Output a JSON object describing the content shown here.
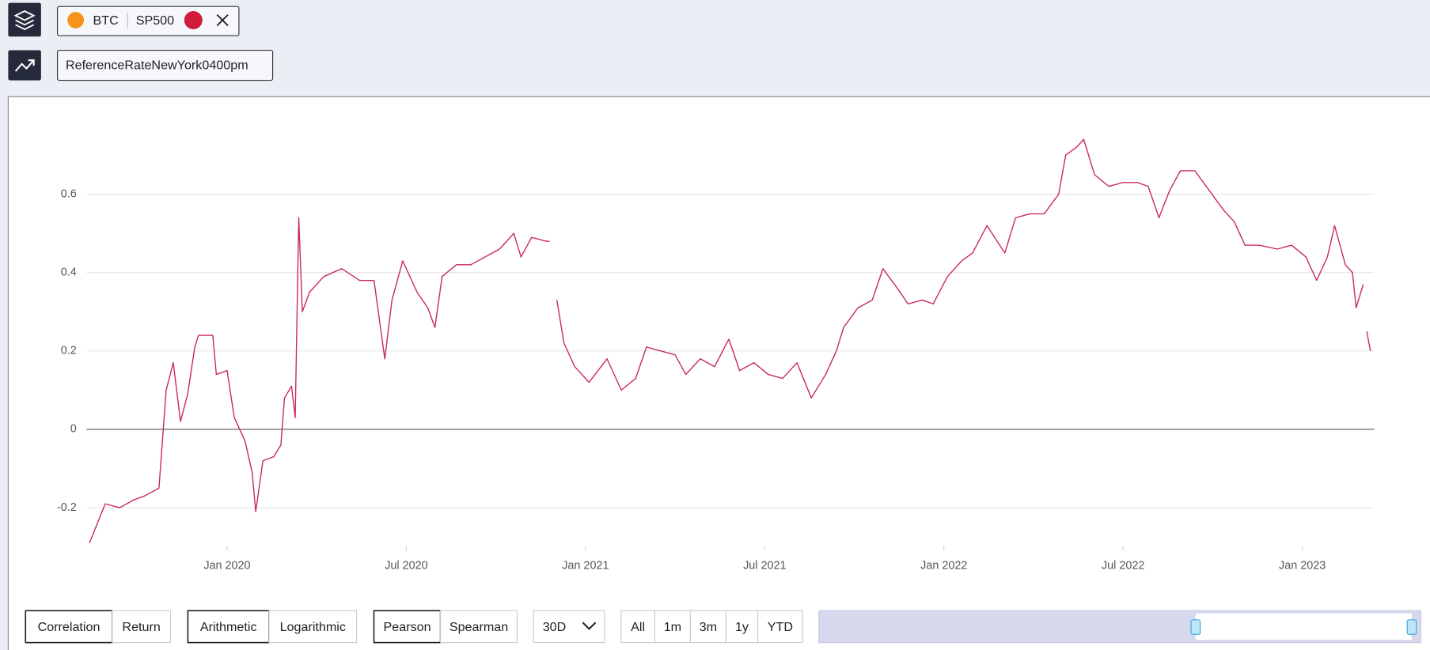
{
  "header": {
    "assets": [
      "BTC",
      "SP500"
    ],
    "metric": "ReferenceRateNewYork0400pm"
  },
  "chart_data": {
    "type": "line",
    "color": "#c8285a",
    "x": [
      2019.616,
      2019.66,
      2019.7,
      2019.74,
      2019.77,
      2019.81,
      2019.83,
      2019.85,
      2019.87,
      2019.89,
      2019.91,
      2019.92,
      2019.96,
      2019.97,
      2020.0,
      2020.02,
      2020.05,
      2020.07,
      2020.08,
      2020.1,
      2020.13,
      2020.15,
      2020.16,
      2020.18,
      2020.19,
      2020.2,
      2020.21,
      2020.23,
      2020.27,
      2020.32,
      2020.37,
      2020.41,
      2020.44,
      2020.46,
      2020.49,
      2020.53,
      2020.56,
      2020.58,
      2020.6,
      2020.64,
      2020.68,
      2020.72,
      2020.76,
      2020.8,
      2020.82,
      2020.85,
      2020.89,
      2020.9,
      2020.91,
      2020.92,
      2020.94,
      2020.97,
      2021.01,
      2021.06,
      2021.1,
      2021.14,
      2021.17,
      2021.21,
      2021.25,
      2021.28,
      2021.32,
      2021.36,
      2021.4,
      2021.43,
      2021.47,
      2021.51,
      2021.55,
      2021.59,
      2021.63,
      2021.67,
      2021.7,
      2021.72,
      2021.76,
      2021.8,
      2021.83,
      2021.87,
      2021.9,
      2021.94,
      2021.97,
      2022.01,
      2022.05,
      2022.08,
      2022.12,
      2022.17,
      2022.2,
      2022.24,
      2022.28,
      2022.32,
      2022.34,
      2022.37,
      2022.39,
      2022.42,
      2022.46,
      2022.5,
      2022.54,
      2022.57,
      2022.6,
      2022.63,
      2022.66,
      2022.7,
      2022.74,
      2022.78,
      2022.81,
      2022.84,
      2022.88,
      2022.93,
      2022.97,
      2023.01,
      2023.04,
      2023.07,
      2023.09,
      2023.12,
      2023.14,
      2023.15,
      2023.17,
      2023.175,
      2023.18,
      2023.19
    ],
    "values": [
      -0.29,
      -0.19,
      -0.2,
      -0.18,
      -0.17,
      -0.15,
      0.1,
      0.17,
      0.02,
      0.09,
      0.21,
      0.24,
      0.24,
      0.14,
      0.15,
      0.03,
      -0.03,
      -0.11,
      -0.21,
      -0.08,
      -0.07,
      -0.04,
      0.08,
      0.11,
      0.03,
      0.54,
      0.3,
      0.35,
      0.39,
      0.41,
      0.38,
      0.38,
      0.18,
      0.33,
      0.43,
      0.35,
      0.31,
      0.26,
      0.39,
      0.42,
      0.42,
      0.44,
      0.46,
      0.5,
      0.44,
      0.49,
      0.48,
      0.48,
      null,
      0.33,
      0.22,
      0.16,
      0.12,
      0.18,
      0.1,
      0.13,
      0.21,
      0.2,
      0.19,
      0.14,
      0.18,
      0.16,
      0.23,
      0.15,
      0.17,
      0.14,
      0.13,
      0.17,
      0.08,
      0.14,
      0.2,
      0.26,
      0.31,
      0.33,
      0.41,
      0.36,
      0.32,
      0.33,
      0.32,
      0.39,
      0.43,
      0.45,
      0.52,
      0.45,
      0.54,
      0.55,
      0.55,
      0.6,
      0.7,
      0.72,
      0.74,
      0.65,
      0.62,
      0.63,
      0.63,
      0.62,
      0.54,
      0.61,
      0.66,
      0.66,
      0.61,
      0.56,
      0.53,
      0.47,
      0.47,
      0.46,
      0.47,
      0.44,
      0.38,
      0.44,
      0.52,
      0.42,
      0.4,
      0.31,
      0.37,
      null,
      0.25,
      0.2
    ],
    "xlim": [
      2019.6,
      2023.2
    ],
    "xticks": [
      {
        "value": 2020.0,
        "label": "Jan 2020"
      },
      {
        "value": 2020.5,
        "label": "Jul 2020"
      },
      {
        "value": 2021.0,
        "label": "Jan 2021"
      },
      {
        "value": 2021.5,
        "label": "Jul 2021"
      },
      {
        "value": 2022.0,
        "label": "Jan 2022"
      },
      {
        "value": 2022.5,
        "label": "Jul 2022"
      },
      {
        "value": 2023.0,
        "label": "Jan 2023"
      }
    ],
    "ylim": [
      -0.3,
      0.78
    ],
    "yticks": [
      -0.2,
      0,
      0.2,
      0.4,
      0.6
    ],
    "grid": true
  },
  "controls": {
    "mode": [
      "Correlation",
      "Return"
    ],
    "scale": [
      "Arithmetic",
      "Logarithmic"
    ],
    "method": [
      "Pearson",
      "Spearman"
    ],
    "window": "30D",
    "ranges": [
      "All",
      "1m",
      "3m",
      "1y",
      "YTD"
    ]
  }
}
